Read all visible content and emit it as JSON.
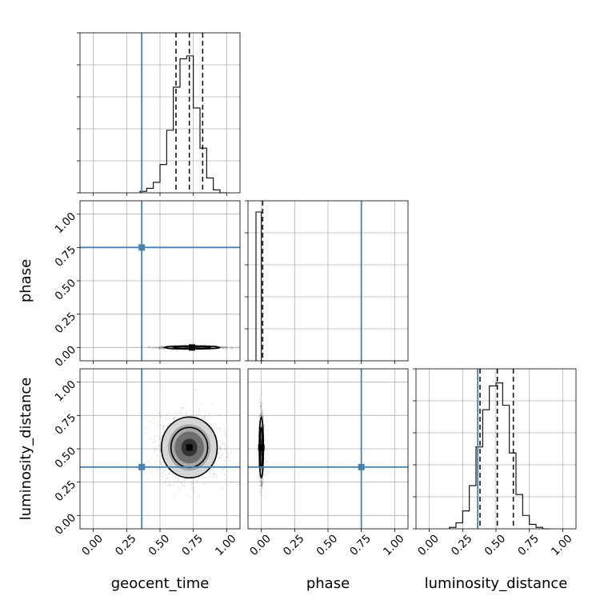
{
  "chart_data": {
    "type": "corner",
    "parameters": [
      "geocent_time",
      "phase",
      "luminosity_distance"
    ],
    "truths": {
      "geocent_time": 0.363,
      "phase": 0.75,
      "luminosity_distance": 0.363
    },
    "grid": true,
    "truth_color": "#4682b4",
    "axis_range": [
      -0.1,
      1.1
    ],
    "tick_labels": [
      "0.00",
      "0.25",
      "0.50",
      "0.75",
      "1.00"
    ],
    "tick_values": [
      0.0,
      0.25,
      0.5,
      0.75,
      1.0
    ],
    "marginals": {
      "geocent_time": {
        "bin_edges": [
          0.35,
          0.4,
          0.45,
          0.5,
          0.55,
          0.6,
          0.65,
          0.7,
          0.75,
          0.8,
          0.85,
          0.9,
          0.95,
          1.0
        ],
        "relative_counts": [
          0.01,
          0.03,
          0.07,
          0.19,
          0.42,
          0.71,
          0.9,
          0.92,
          0.57,
          0.3,
          0.1,
          0.02,
          0.0
        ],
        "quantiles": [
          0.62,
          0.72,
          0.82
        ]
      },
      "phase": {
        "bin_edges": [
          -0.04,
          -0.02,
          0.0,
          0.02
        ],
        "relative_counts": [
          1.0,
          1.0,
          0.0
        ],
        "quantiles": [
          0.01
        ]
      },
      "luminosity_distance": {
        "bin_edges": [
          0.15,
          0.2,
          0.25,
          0.3,
          0.35,
          0.4,
          0.45,
          0.5,
          0.55,
          0.6,
          0.65,
          0.7,
          0.75,
          0.8,
          0.85,
          0.9
        ],
        "relative_counts": [
          0.01,
          0.04,
          0.12,
          0.29,
          0.55,
          0.8,
          0.96,
          0.98,
          0.83,
          0.51,
          0.23,
          0.09,
          0.03,
          0.01,
          0.0
        ],
        "quantiles": [
          0.38,
          0.51,
          0.63
        ]
      }
    },
    "joint": {
      "geocent_time_vs_phase": {
        "center": [
          0.74,
          0.0
        ],
        "spread": [
          0.11,
          0.006
        ]
      },
      "geocent_time_vs_luminosity_distance": {
        "center": [
          0.72,
          0.51
        ],
        "spread": [
          0.11,
          0.12
        ]
      },
      "phase_vs_luminosity_distance": {
        "center": [
          0.0,
          0.51
        ],
        "spread": [
          0.008,
          0.12
        ]
      }
    }
  }
}
